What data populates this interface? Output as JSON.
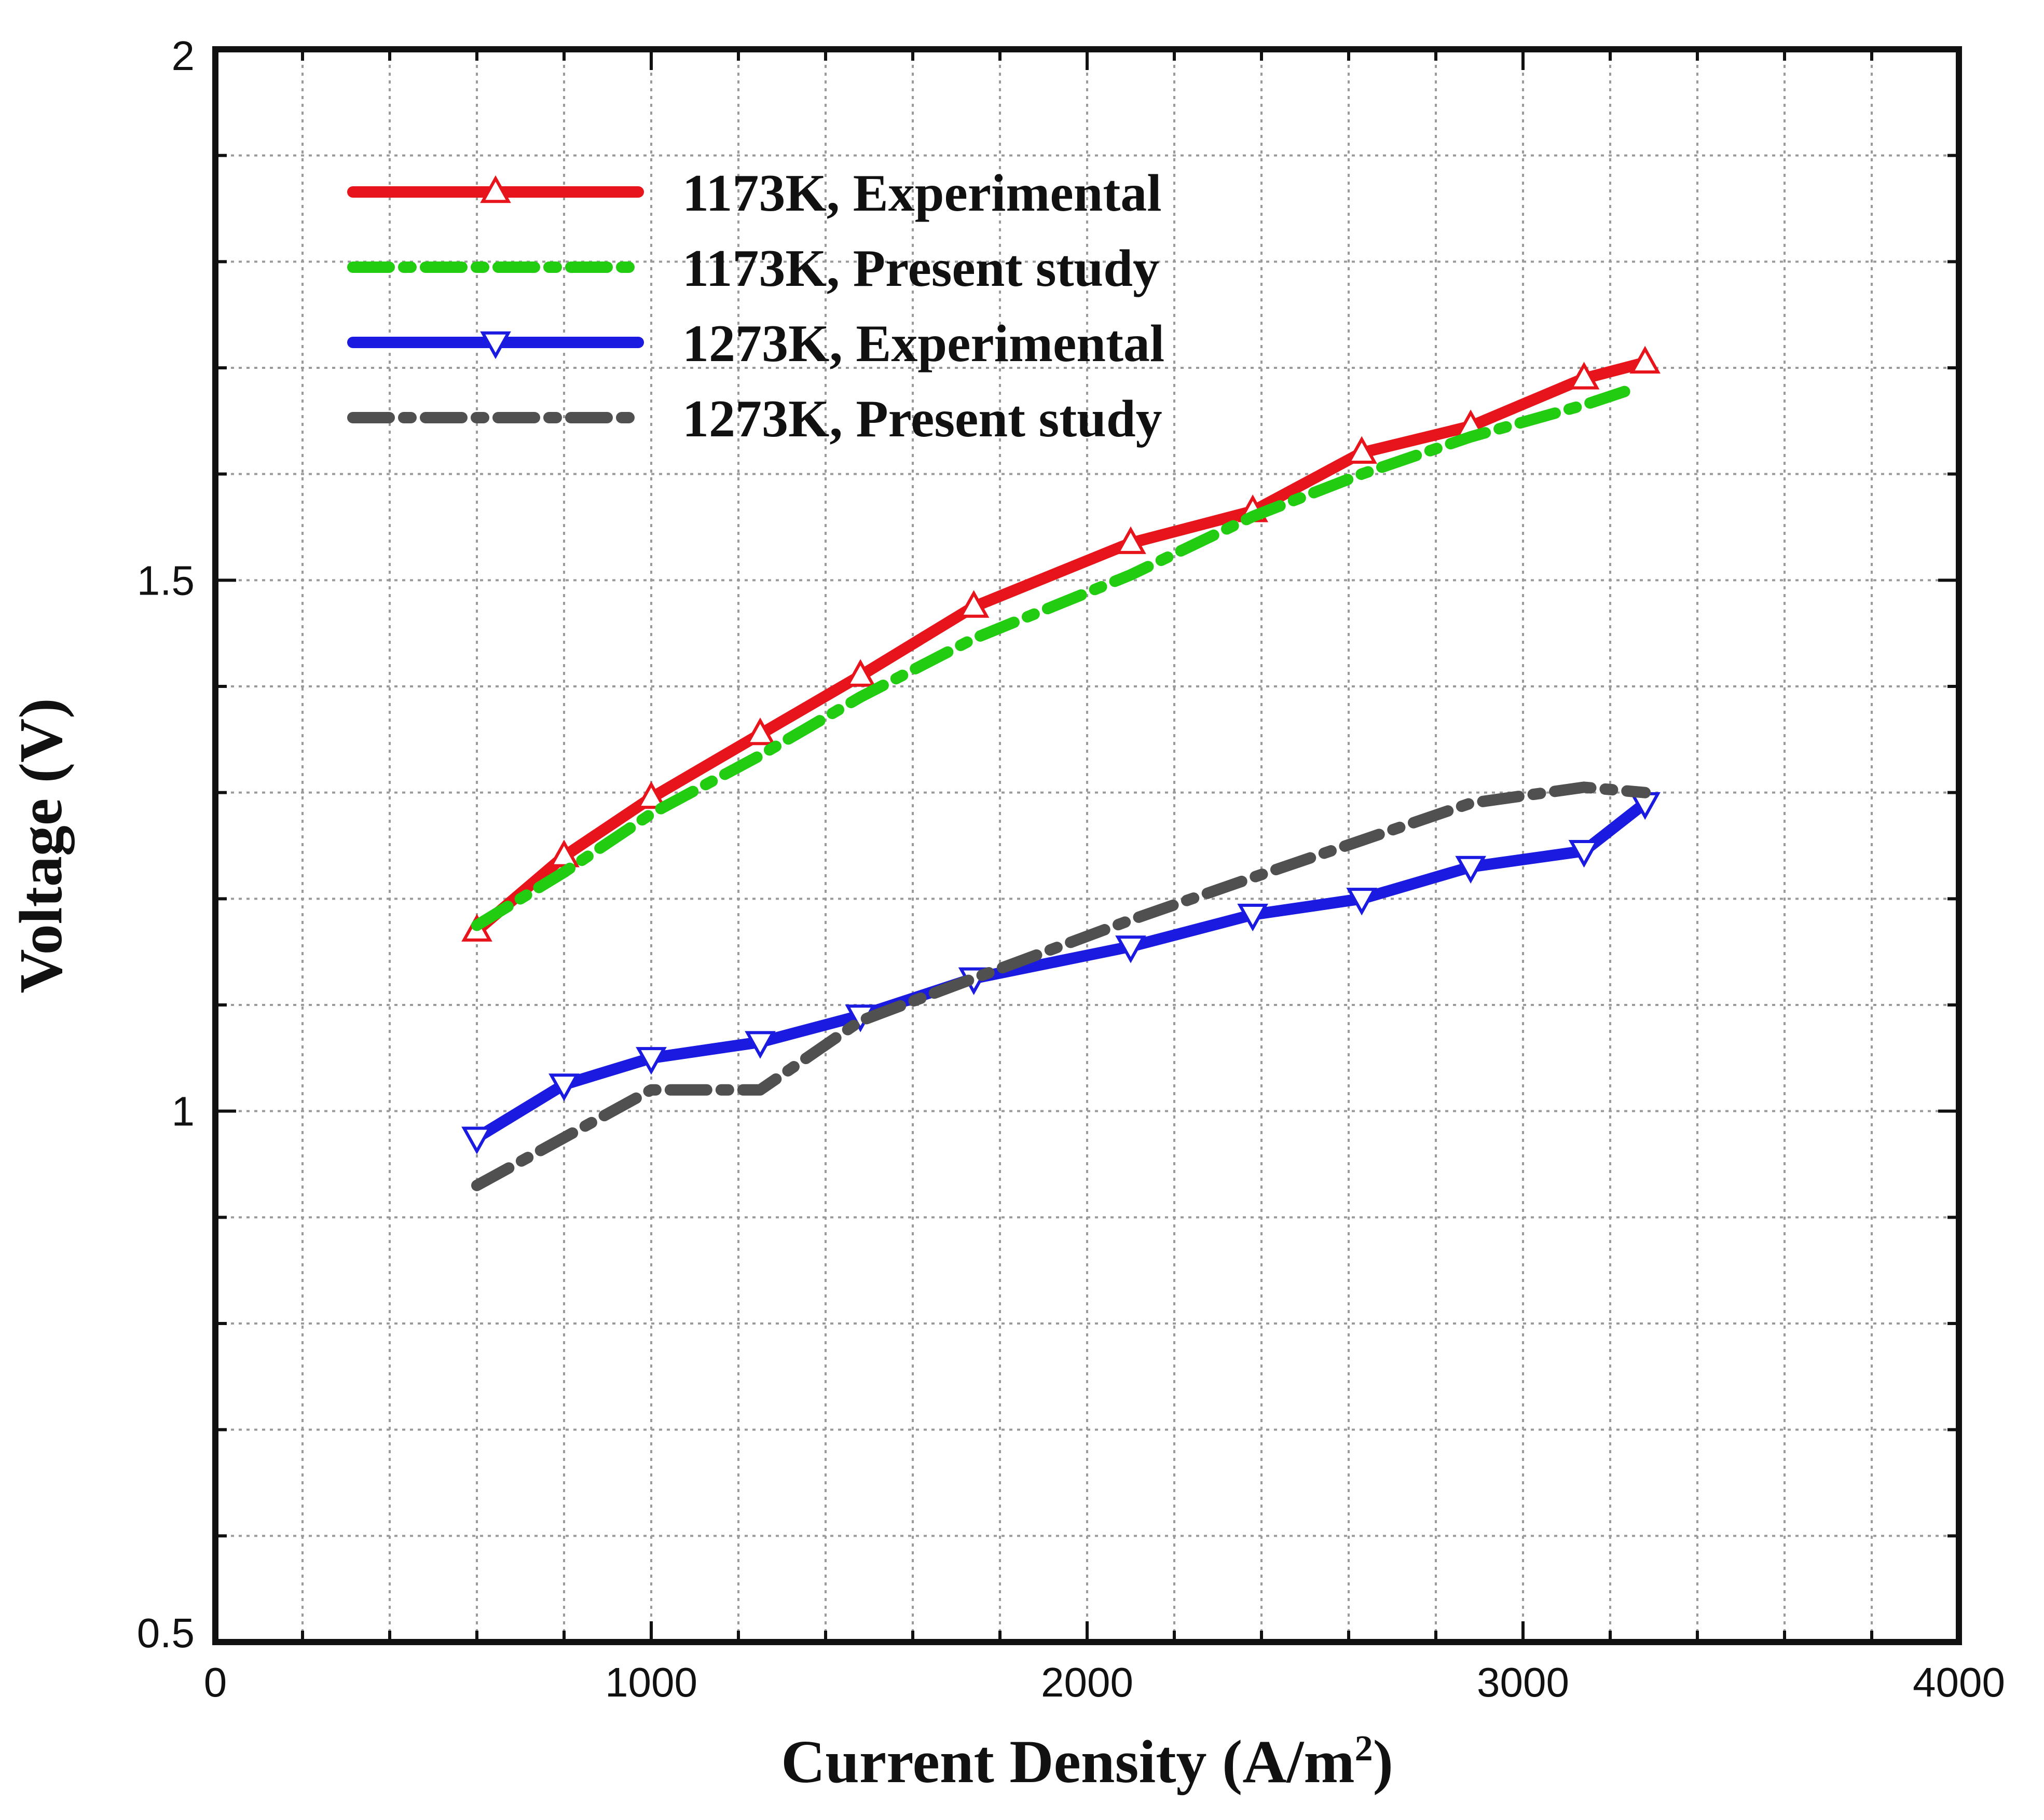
{
  "chart_data": {
    "type": "line",
    "title": "",
    "xlabel": "Current Density (A/m",
    "xlabel_sup": "2",
    "xlabel_end": ")",
    "ylabel": "Voltage (V)",
    "xlim": [
      0,
      4000
    ],
    "ylim": [
      0.5,
      2
    ],
    "x_ticks": [
      0,
      1000,
      2000,
      3000,
      4000
    ],
    "x_tick_labels": [
      "0",
      "1000",
      "2000",
      "3000",
      "4000"
    ],
    "y_ticks": [
      0.5,
      1,
      1.5,
      2
    ],
    "y_tick_labels": [
      "0.5",
      "1",
      "1.5",
      "2"
    ],
    "x_grid_step": 200,
    "y_grid_step": 0.1,
    "grid": true,
    "legend_position": "top-left",
    "series": [
      {
        "name": "1173K, Experimental",
        "color": "#e8141b",
        "line_style": "solid",
        "marker": "triangle-up",
        "x": [
          600,
          800,
          1000,
          1250,
          1480,
          1740,
          2100,
          2380,
          2630,
          2880,
          3140,
          3280
        ],
        "y": [
          1.17,
          1.24,
          1.295,
          1.355,
          1.41,
          1.475,
          1.535,
          1.565,
          1.62,
          1.645,
          1.69,
          1.705
        ]
      },
      {
        "name": "1173K, Present study",
        "color": "#22cc11",
        "line_style": "dashdot",
        "marker": "none",
        "x": [
          600,
          800,
          1000,
          1250,
          1480,
          1740,
          2100,
          2380,
          2630,
          2880,
          3140,
          3250
        ],
        "y": [
          1.175,
          1.225,
          1.28,
          1.335,
          1.39,
          1.445,
          1.505,
          1.56,
          1.6,
          1.635,
          1.665,
          1.68
        ]
      },
      {
        "name": "1273K, Experimental",
        "color": "#1a1ae0",
        "line_style": "solid",
        "marker": "triangle-down",
        "x": [
          600,
          800,
          1000,
          1250,
          1480,
          1740,
          2100,
          2380,
          2630,
          2880,
          3140,
          3280
        ],
        "y": [
          0.975,
          1.025,
          1.05,
          1.065,
          1.09,
          1.125,
          1.155,
          1.185,
          1.2,
          1.23,
          1.245,
          1.29
        ]
      },
      {
        "name": "1273K, Present study",
        "color": "#505050",
        "line_style": "dashdot",
        "marker": "none",
        "x": [
          600,
          800,
          1000,
          1250,
          1480,
          1740,
          2100,
          2380,
          2630,
          2880,
          3140,
          3280
        ],
        "y": [
          0.93,
          0.975,
          1.02,
          1.02,
          1.085,
          1.125,
          1.18,
          1.22,
          1.255,
          1.29,
          1.305,
          1.3
        ]
      }
    ]
  }
}
